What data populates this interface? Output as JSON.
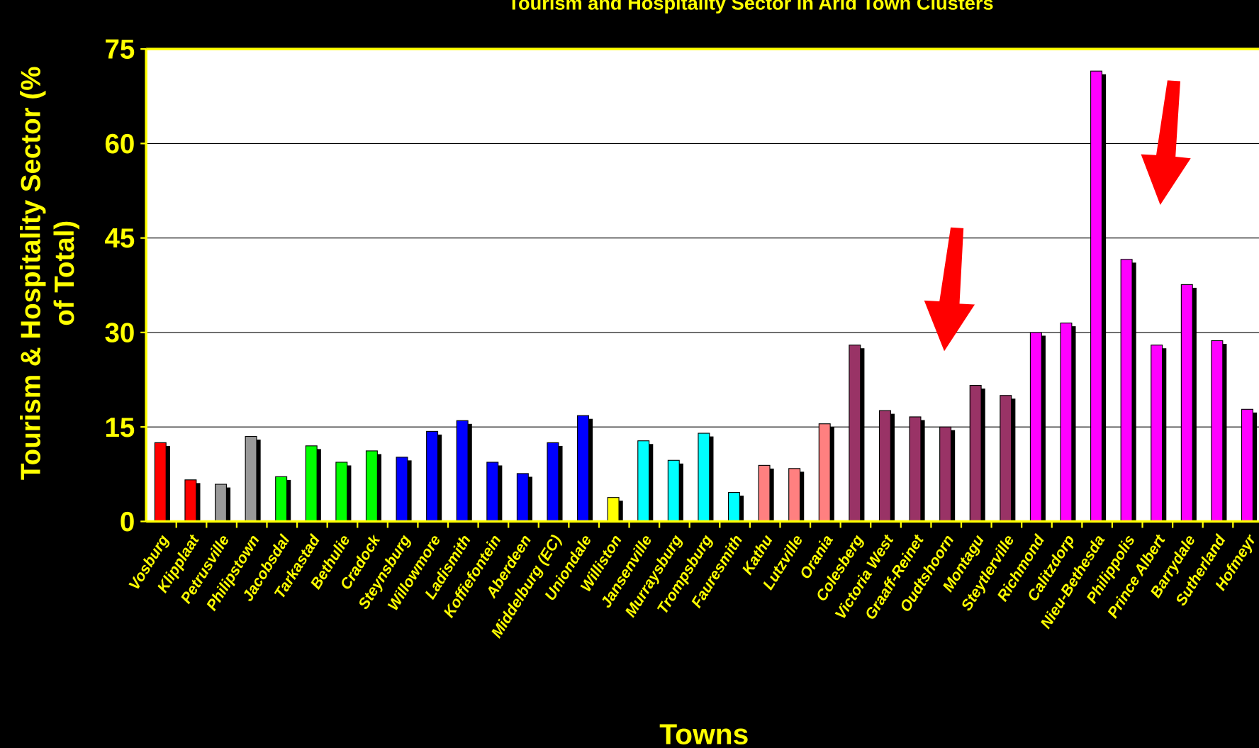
{
  "chart_data": {
    "type": "bar",
    "title": "Tourism and Hospitality Sector in Arid Town Clusters",
    "ylabel_lines": [
      "Tourism & Hospitality Sector (%",
      "of Total)"
    ],
    "xlabel": "Towns",
    "categories": [
      "Vosburg",
      "Klipplaat",
      "Petrusville",
      "Philipstown",
      "Jacobsdal",
      "Tarkastad",
      "Bethulie",
      "Cradock",
      "Steynsburg",
      "Willowmore",
      "Ladismith",
      "Koffiefontein",
      "Aberdeen",
      "Middelburg (EC)",
      "Uniondale",
      "Williston",
      "Jansenville",
      "Murraysburg",
      "Trompsburg",
      "Fauresmith",
      "Kathu",
      "Lutzville",
      "Orania",
      "Colesberg",
      "Victoria West",
      "Graaff-Reinet",
      "Oudtshoorn",
      "Montagu",
      "Steytlerville",
      "Richmond",
      "Calitzdorp",
      "Nieu-Bethesda",
      "Philippolis",
      "Prince Albert",
      "Barrydale",
      "Sutherland",
      "Hofmeyr"
    ],
    "values": [
      12.5,
      6.6,
      5.9,
      13.5,
      7.1,
      12,
      9.4,
      11.2,
      10.2,
      14.3,
      16,
      9.4,
      7.6,
      12.5,
      16.8,
      3.8,
      12.8,
      9.7,
      14,
      4.6,
      8.9,
      8.4,
      15.5,
      28,
      17.6,
      16.6,
      15,
      21.6,
      20,
      30,
      31.5,
      71.5,
      41.6,
      28,
      37.6,
      28.7,
      17.8
    ],
    "colors": [
      "#ff0000",
      "#ff0000",
      "#999999",
      "#999999",
      "#00ff00",
      "#00ff00",
      "#00ff00",
      "#00ff00",
      "#0000ff",
      "#0000ff",
      "#0000ff",
      "#0000ff",
      "#0000ff",
      "#0000ff",
      "#0000ff",
      "#ffff00",
      "#00ffff",
      "#00ffff",
      "#00ffff",
      "#00ffff",
      "#ff8080",
      "#ff8080",
      "#ff8080",
      "#993366",
      "#993366",
      "#993366",
      "#993366",
      "#993366",
      "#993366",
      "#ff00ff",
      "#ff00ff",
      "#ff00ff",
      "#ff00ff",
      "#ff00ff",
      "#ff00ff",
      "#ff00ff",
      "#ff00ff"
    ],
    "ylim": [
      0,
      75
    ],
    "yticks": [
      0,
      15,
      30,
      45,
      60,
      75
    ],
    "grid": true
  }
}
